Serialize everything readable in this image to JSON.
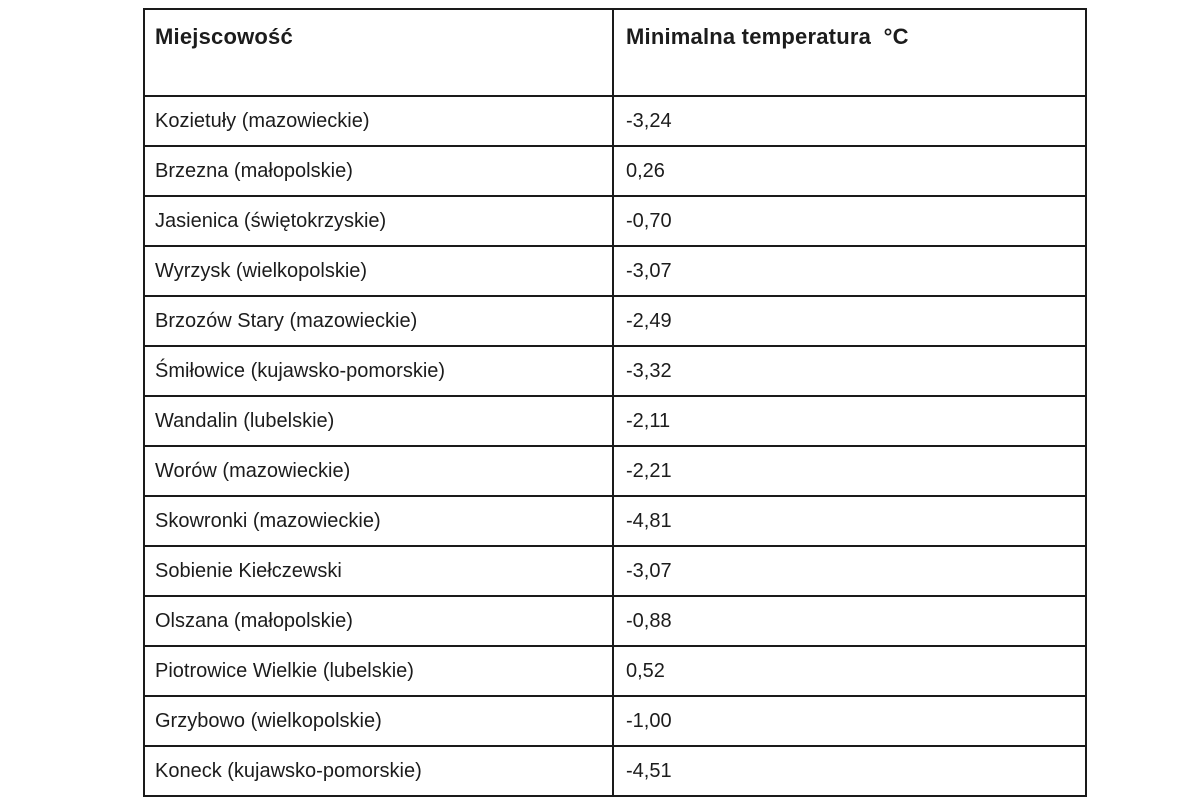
{
  "table": {
    "columns": [
      {
        "key": "locality",
        "label": "Miejscowość"
      },
      {
        "key": "min_temp",
        "label": "Minimalna temperatura  °C"
      }
    ],
    "rows": [
      {
        "locality": "Kozietuły (mazowieckie)",
        "min_temp": "-3,24"
      },
      {
        "locality": "Brzezna (małopolskie)",
        "min_temp": "0,26"
      },
      {
        "locality": "Jasienica (świętokrzyskie)",
        "min_temp": "-0,70"
      },
      {
        "locality": "Wyrzysk (wielkopolskie)",
        "min_temp": "-3,07"
      },
      {
        "locality": "Brzozów Stary (mazowieckie)",
        "min_temp": "-2,49"
      },
      {
        "locality": "Śmiłowice (kujawsko-pomorskie)",
        "min_temp": "-3,32"
      },
      {
        "locality": "Wandalin (lubelskie)",
        "min_temp": "-2,11"
      },
      {
        "locality": "Worów (mazowieckie)",
        "min_temp": "-2,21"
      },
      {
        "locality": "Skowronki (mazowieckie)",
        "min_temp": "-4,81"
      },
      {
        "locality": "Sobienie Kiełczewski",
        "min_temp": "-3,07"
      },
      {
        "locality": "Olszana (małopolskie)",
        "min_temp": "-0,88"
      },
      {
        "locality": "Piotrowice Wielkie (lubelskie)",
        "min_temp": "0,52"
      },
      {
        "locality": "Grzybowo (wielkopolskie)",
        "min_temp": "-1,00"
      },
      {
        "locality": "Koneck (kujawsko-pomorskie)",
        "min_temp": "-4,51"
      }
    ],
    "colors": {
      "border": "#1a1a1a",
      "text": "#1c1c1c",
      "background": "#ffffff"
    }
  }
}
